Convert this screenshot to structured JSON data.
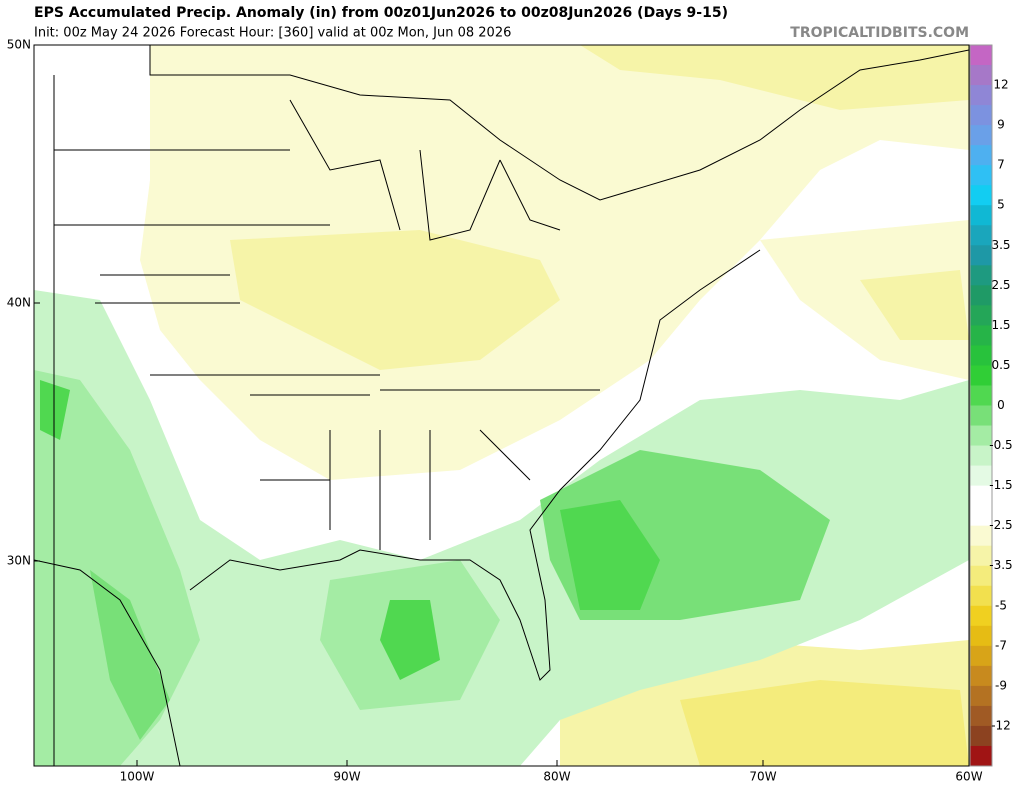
{
  "header": {
    "title": "EPS Accumulated Precip. Anomaly (in) from 00z01Jun2026 to 00z08Jun2026 (Days 9-15)",
    "subtitle": "Init: 00z May 24 2026   Forecast Hour: [360]   valid at 00z Mon, Jun 08 2026",
    "watermark": "TROPICALTIDBITS.COM"
  },
  "map": {
    "lat_labels": [
      "50N",
      "40N",
      "30N"
    ],
    "lon_labels": [
      "100W",
      "90W",
      "80W",
      "70W",
      "60W"
    ]
  },
  "colorbar": {
    "labels": [
      12,
      9,
      7,
      5,
      3.5,
      2.5,
      1.5,
      0.5,
      0,
      -0.5,
      -1.5,
      -2.5,
      -3.5,
      -5,
      -7,
      -9,
      -12
    ],
    "colors": [
      "#c466c4",
      "#a678c8",
      "#8f86d6",
      "#7c92e0",
      "#6aa0e8",
      "#4eb0f0",
      "#2fc0f4",
      "#12cdf2",
      "#10b8d4",
      "#1aa6bc",
      "#1e98a6",
      "#1e9a80",
      "#1f9a66",
      "#24a658",
      "#26b448",
      "#28c23c",
      "#30ce36",
      "#50d850",
      "#78e078",
      "#a4eca4",
      "#c8f4c8",
      "#e4fae4",
      "#ffffff",
      "#ffffff",
      "#fafad2",
      "#f6f4a8",
      "#f4ec7c",
      "#f2e04e",
      "#f0d020",
      "#e6bc14",
      "#d8a418",
      "#c88a1e",
      "#b47222",
      "#a05a24",
      "#8c4220",
      "#a01414"
    ]
  }
}
